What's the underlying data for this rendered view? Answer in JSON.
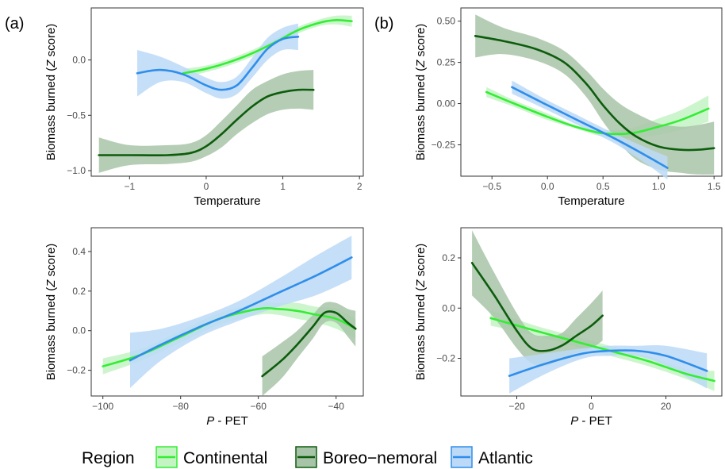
{
  "panel_tags": [
    "(a)",
    "(b)"
  ],
  "legend": {
    "title": "Region",
    "items": [
      {
        "label": "Continental",
        "color": "#33ee33",
        "fill": "#c4f3c4"
      },
      {
        "label": "Boreo−nemoral",
        "color": "#0d5c0d",
        "fill": "#a8c4a8"
      },
      {
        "label": "Atlantic",
        "color": "#2f8eea",
        "fill": "#bcd9f7"
      }
    ]
  },
  "chart_data": [
    {
      "id": "a-top",
      "type": "line",
      "xlabel": "Temperature",
      "ylabel": "Biomass burned (Z score)",
      "xlim": [
        -1.5,
        2.05
      ],
      "ylim": [
        -1.05,
        0.47
      ],
      "xticks": [
        -1,
        0,
        1,
        2
      ],
      "yticks": [
        -1.0,
        -0.5,
        0.0
      ],
      "ytick_labels": [
        "−1.0",
        "−0.5",
        "0.0"
      ],
      "xtick_labels": [
        "−1",
        "0",
        "1",
        "2"
      ],
      "series": [
        {
          "name": "Continental",
          "x": [
            -0.3,
            0.0,
            0.3,
            0.6,
            0.9,
            1.2,
            1.5,
            1.7,
            1.9
          ],
          "y": [
            -0.12,
            -0.08,
            -0.02,
            0.06,
            0.16,
            0.27,
            0.34,
            0.36,
            0.35
          ],
          "lo": [
            -0.16,
            -0.11,
            -0.05,
            0.03,
            0.13,
            0.24,
            0.31,
            0.32,
            0.3
          ],
          "hi": [
            -0.08,
            -0.05,
            0.01,
            0.09,
            0.19,
            0.3,
            0.37,
            0.4,
            0.4
          ]
        },
        {
          "name": "Boreo−nemoral",
          "x": [
            -1.4,
            -1.0,
            -0.5,
            -0.2,
            0.0,
            0.2,
            0.4,
            0.6,
            0.8,
            1.0,
            1.2,
            1.4
          ],
          "y": [
            -0.86,
            -0.86,
            -0.86,
            -0.84,
            -0.78,
            -0.67,
            -0.54,
            -0.42,
            -0.33,
            -0.29,
            -0.27,
            -0.27
          ],
          "lo": [
            -1.02,
            -0.95,
            -0.94,
            -0.92,
            -0.87,
            -0.79,
            -0.67,
            -0.57,
            -0.49,
            -0.45,
            -0.44,
            -0.45
          ],
          "hi": [
            -0.7,
            -0.77,
            -0.77,
            -0.75,
            -0.68,
            -0.55,
            -0.41,
            -0.27,
            -0.19,
            -0.13,
            -0.1,
            -0.09
          ]
        },
        {
          "name": "Atlantic",
          "x": [
            -0.9,
            -0.6,
            -0.3,
            0.0,
            0.2,
            0.4,
            0.6,
            0.8,
            1.0,
            1.2
          ],
          "y": [
            -0.12,
            -0.09,
            -0.13,
            -0.23,
            -0.27,
            -0.23,
            -0.07,
            0.1,
            0.19,
            0.21
          ],
          "lo": [
            -0.33,
            -0.2,
            -0.2,
            -0.3,
            -0.35,
            -0.31,
            -0.16,
            0.0,
            0.09,
            0.09
          ],
          "hi": [
            0.09,
            0.03,
            -0.06,
            -0.16,
            -0.2,
            -0.15,
            0.02,
            0.2,
            0.29,
            0.33
          ]
        }
      ]
    },
    {
      "id": "b-top",
      "type": "line",
      "xlabel": "Temperature",
      "ylabel": "Biomass burned (Z score)",
      "xlim": [
        -0.78,
        1.57
      ],
      "ylim": [
        -0.44,
        0.58
      ],
      "xticks": [
        -0.5,
        0.0,
        0.5,
        1.0,
        1.5
      ],
      "yticks": [
        -0.25,
        0.0,
        0.25,
        0.5
      ],
      "ytick_labels": [
        "−0.25",
        "0.00",
        "0.25",
        "0.50"
      ],
      "xtick_labels": [
        "−0.5",
        "0.0",
        "0.5",
        "1.0",
        "1.5"
      ],
      "series": [
        {
          "name": "Continental",
          "x": [
            -0.55,
            -0.3,
            0.0,
            0.25,
            0.5,
            0.75,
            1.0,
            1.2,
            1.45
          ],
          "y": [
            0.07,
            0.0,
            -0.08,
            -0.14,
            -0.18,
            -0.18,
            -0.14,
            -0.1,
            -0.03
          ],
          "lo": [
            0.04,
            -0.02,
            -0.1,
            -0.15,
            -0.2,
            -0.21,
            -0.19,
            -0.16,
            -0.11
          ],
          "hi": [
            0.1,
            0.02,
            -0.06,
            -0.13,
            -0.16,
            -0.15,
            -0.09,
            -0.04,
            0.05
          ]
        },
        {
          "name": "Boreo−nemoral",
          "x": [
            -0.65,
            -0.4,
            -0.1,
            0.15,
            0.35,
            0.5,
            0.65,
            0.8,
            1.0,
            1.2,
            1.35,
            1.5
          ],
          "y": [
            0.41,
            0.38,
            0.33,
            0.25,
            0.12,
            -0.01,
            -0.12,
            -0.2,
            -0.26,
            -0.28,
            -0.28,
            -0.27
          ],
          "lo": [
            0.28,
            0.3,
            0.26,
            0.18,
            0.04,
            -0.11,
            -0.24,
            -0.34,
            -0.4,
            -0.42,
            -0.43,
            -0.43
          ],
          "hi": [
            0.54,
            0.46,
            0.4,
            0.32,
            0.2,
            0.09,
            0.0,
            -0.06,
            -0.12,
            -0.14,
            -0.13,
            -0.11
          ]
        },
        {
          "name": "Atlantic",
          "x": [
            -0.32,
            0.0,
            0.3,
            0.6,
            0.9,
            1.08
          ],
          "y": [
            0.1,
            -0.01,
            -0.11,
            -0.21,
            -0.32,
            -0.39
          ],
          "lo": [
            0.06,
            -0.04,
            -0.14,
            -0.24,
            -0.37,
            -0.46
          ],
          "hi": [
            0.14,
            0.02,
            -0.08,
            -0.18,
            -0.27,
            -0.32
          ]
        }
      ]
    },
    {
      "id": "a-bottom",
      "type": "line",
      "xlabel": "P - PET",
      "ylabel": "Biomass burned (Z score)",
      "xlim": [
        -103,
        -33
      ],
      "ylim": [
        -0.33,
        0.52
      ],
      "xticks": [
        -100,
        -80,
        -60,
        -40
      ],
      "yticks": [
        -0.2,
        0.0,
        0.2,
        0.4
      ],
      "ytick_labels": [
        "−0.2",
        "0.0",
        "0.2",
        "0.4"
      ],
      "xtick_labels": [
        "−100",
        "−80",
        "−60",
        "−40"
      ],
      "series": [
        {
          "name": "Continental",
          "x": [
            -100,
            -90,
            -80,
            -70,
            -60,
            -55,
            -50,
            -45,
            -40,
            -35
          ],
          "y": [
            -0.18,
            -0.12,
            -0.03,
            0.06,
            0.11,
            0.11,
            0.1,
            0.08,
            0.06,
            0.01
          ],
          "lo": [
            -0.22,
            -0.15,
            -0.06,
            0.03,
            0.08,
            0.08,
            0.06,
            0.04,
            0.01,
            -0.04
          ],
          "hi": [
            -0.14,
            -0.09,
            0.0,
            0.09,
            0.14,
            0.14,
            0.14,
            0.12,
            0.11,
            0.06
          ]
        },
        {
          "name": "Boreo−nemoral",
          "x": [
            -59,
            -54,
            -50,
            -46,
            -43,
            -40,
            -37,
            -35
          ],
          "y": [
            -0.23,
            -0.15,
            -0.07,
            0.02,
            0.09,
            0.09,
            0.04,
            0.01
          ],
          "lo": [
            -0.33,
            -0.24,
            -0.14,
            -0.04,
            0.04,
            0.04,
            -0.03,
            -0.08
          ],
          "hi": [
            -0.13,
            -0.06,
            0.0,
            0.08,
            0.14,
            0.14,
            0.11,
            0.1
          ]
        },
        {
          "name": "Atlantic",
          "x": [
            -93,
            -85,
            -75,
            -65,
            -55,
            -45,
            -36
          ],
          "y": [
            -0.15,
            -0.07,
            0.02,
            0.1,
            0.19,
            0.28,
            0.37
          ],
          "lo": [
            -0.29,
            -0.15,
            -0.03,
            0.05,
            0.12,
            0.18,
            0.26
          ],
          "hi": [
            -0.01,
            0.01,
            0.07,
            0.15,
            0.26,
            0.38,
            0.48
          ]
        }
      ]
    },
    {
      "id": "b-bottom",
      "type": "line",
      "xlabel": "P - PET",
      "ylabel": "Biomass burned (Z score)",
      "xlim": [
        -35,
        35
      ],
      "ylim": [
        -0.35,
        0.32
      ],
      "xticks": [
        -20,
        0,
        20
      ],
      "yticks": [
        -0.2,
        0.0,
        0.2
      ],
      "ytick_labels": [
        "−0.2",
        "0.0",
        "0.2"
      ],
      "xtick_labels": [
        "−20",
        "0",
        "20"
      ],
      "series": [
        {
          "name": "Continental",
          "x": [
            -27,
            -15,
            -5,
            5,
            15,
            25,
            33
          ],
          "y": [
            -0.04,
            -0.09,
            -0.13,
            -0.17,
            -0.21,
            -0.26,
            -0.29
          ],
          "lo": [
            -0.07,
            -0.11,
            -0.15,
            -0.19,
            -0.23,
            -0.28,
            -0.33
          ],
          "hi": [
            -0.01,
            -0.07,
            -0.11,
            -0.15,
            -0.19,
            -0.24,
            -0.25
          ]
        },
        {
          "name": "Boreo−nemoral",
          "x": [
            -32,
            -26,
            -20,
            -16,
            -12,
            -8,
            -4,
            0,
            3
          ],
          "y": [
            0.18,
            0.05,
            -0.09,
            -0.16,
            -0.17,
            -0.15,
            -0.11,
            -0.07,
            -0.03
          ],
          "lo": [
            0.05,
            -0.04,
            -0.16,
            -0.22,
            -0.23,
            -0.2,
            -0.18,
            -0.16,
            -0.13
          ],
          "hi": [
            0.31,
            0.14,
            -0.02,
            -0.1,
            -0.11,
            -0.1,
            -0.04,
            0.02,
            0.07
          ]
        },
        {
          "name": "Atlantic",
          "x": [
            -22,
            -12,
            -2,
            5,
            12,
            20,
            31
          ],
          "y": [
            -0.27,
            -0.22,
            -0.18,
            -0.17,
            -0.17,
            -0.19,
            -0.25
          ],
          "lo": [
            -0.34,
            -0.26,
            -0.2,
            -0.19,
            -0.19,
            -0.23,
            -0.32
          ],
          "hi": [
            -0.2,
            -0.18,
            -0.16,
            -0.15,
            -0.15,
            -0.15,
            -0.18
          ]
        }
      ]
    }
  ]
}
